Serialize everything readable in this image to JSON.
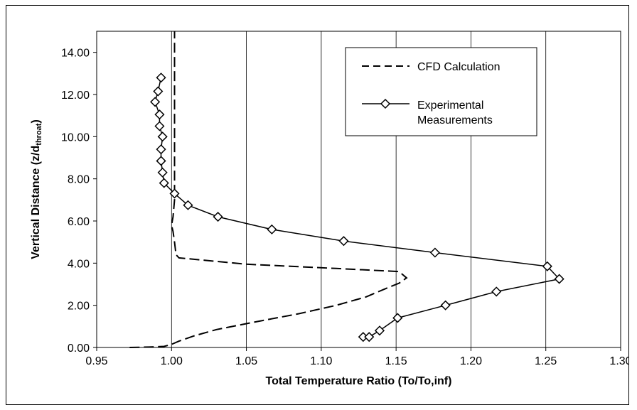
{
  "chart_data": {
    "type": "line",
    "xlabel": "Total Temperature Ratio (To/To,inf)",
    "ylabel_main": "Vertical Distance (z/d",
    "ylabel_sub": "throat",
    "ylabel_close": ")",
    "xlim": [
      0.95,
      1.3
    ],
    "ylim": [
      0.0,
      15.0
    ],
    "x_ticks": [
      0.95,
      1.0,
      1.05,
      1.1,
      1.15,
      1.2,
      1.25,
      1.3
    ],
    "x_tick_labels": [
      "0.95",
      "1.00",
      "1.05",
      "1.10",
      "1.15",
      "1.20",
      "1.25",
      "1.30"
    ],
    "y_ticks": [
      0,
      2,
      4,
      6,
      8,
      10,
      12,
      14
    ],
    "y_tick_labels": [
      "0.00",
      "2.00",
      "4.00",
      "6.00",
      "8.00",
      "10.00",
      "12.00",
      "14.00"
    ],
    "grid": "vertical",
    "legend_position": "top-right",
    "series": [
      {
        "name": "CFD Calculation",
        "style": "dashed",
        "marker": "none",
        "x": [
          0.972,
          0.985,
          0.995,
          1.0,
          1.005,
          1.015,
          1.03,
          1.055,
          1.085,
          1.11,
          1.13,
          1.145,
          1.152,
          1.157,
          1.152,
          1.11,
          1.05,
          1.02,
          1.005,
          1.003,
          1.002,
          1.001,
          1.0,
          1.001,
          1.002,
          1.002,
          1.002,
          1.002
        ],
        "y": [
          0.0,
          0.02,
          0.05,
          0.15,
          0.3,
          0.55,
          0.85,
          1.2,
          1.6,
          2.0,
          2.4,
          2.85,
          3.05,
          3.3,
          3.6,
          3.75,
          3.95,
          4.15,
          4.25,
          4.4,
          5.0,
          5.5,
          5.8,
          6.2,
          7.0,
          10.0,
          13.0,
          15.0
        ]
      },
      {
        "name": "Experimental Measurements",
        "style": "solid",
        "marker": "diamond",
        "x": [
          1.128,
          1.132,
          1.139,
          1.151,
          1.183,
          1.217,
          1.259,
          1.251,
          1.176,
          1.115,
          1.067,
          1.031,
          1.011,
          1.002,
          0.995,
          0.994,
          0.993,
          0.993,
          0.994,
          0.992,
          0.992,
          0.989,
          0.991,
          0.993
        ],
        "y": [
          0.5,
          0.5,
          0.8,
          1.4,
          2.0,
          2.65,
          3.25,
          3.85,
          4.5,
          5.05,
          5.6,
          6.2,
          6.75,
          7.3,
          7.8,
          8.3,
          8.85,
          9.4,
          10.0,
          10.5,
          11.05,
          11.65,
          12.15,
          12.8
        ]
      }
    ]
  }
}
